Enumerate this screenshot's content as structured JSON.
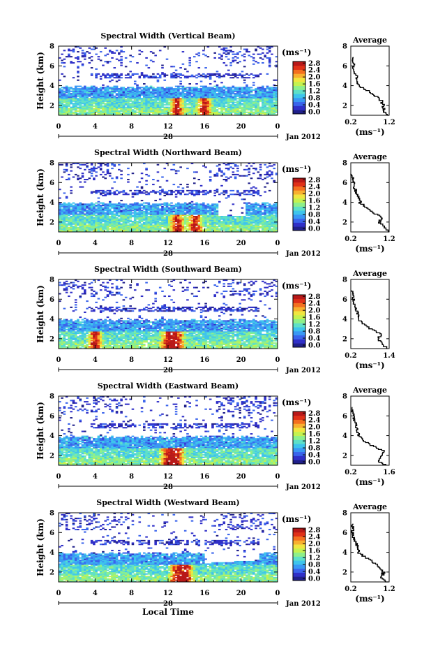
{
  "figure": {
    "date_label": "Jan 2012",
    "day_label": "28",
    "bottom_xlabel": "Local Time",
    "cb_unit": "(ms⁻¹)"
  },
  "colormap": [
    "#20208a",
    "#3030c8",
    "#3a64ec",
    "#3a98f4",
    "#3ec4ec",
    "#5ee0c8",
    "#8ef08a",
    "#c4f250",
    "#f0e640",
    "#f8b030",
    "#f47020",
    "#e03018",
    "#b81818"
  ],
  "chart_data": [
    {
      "type": "heatmap",
      "title": "Spectral Width (Vertical Beam)",
      "xlabel": "",
      "ylabel": "Height (km)",
      "x_ticks": [
        "0",
        "4",
        "8",
        "12",
        "16",
        "20",
        "0"
      ],
      "xlim": [
        0,
        24
      ],
      "ylim": [
        1,
        8
      ],
      "y_ticks": [
        "2",
        "4",
        "6",
        "8"
      ],
      "colorbar": {
        "unit": "(ms⁻¹)",
        "ticks": [
          "0.0",
          "0.4",
          "0.8",
          "1.2",
          "1.6",
          "2.0",
          "2.4",
          "2.8"
        ],
        "range": [
          0,
          2.8
        ]
      },
      "profile": {
        "title": "Average",
        "xlabel": "(ms⁻¹)",
        "x_ticks": [
          "0.2",
          "1.2"
        ],
        "xlim": [
          0.2,
          1.2
        ],
        "y_ticks": [
          "2",
          "4",
          "6",
          "8"
        ],
        "heights": [
          1.0,
          1.5,
          2.0,
          2.5,
          3.0,
          3.5,
          4.0,
          4.5,
          5.0,
          5.5,
          6.0,
          6.5,
          7.0
        ],
        "values": [
          1.2,
          1.05,
          1.05,
          1.0,
          0.85,
          0.65,
          0.4,
          0.38,
          0.35,
          0.3,
          0.28,
          0.25,
          0.23
        ]
      },
      "blob_hours": [
        13,
        16
      ]
    },
    {
      "type": "heatmap",
      "title": "Spectral Width (Northward Beam)",
      "xlabel": "",
      "ylabel": "Height (km)",
      "x_ticks": [
        "0",
        "4",
        "8",
        "12",
        "16",
        "20",
        "0"
      ],
      "xlim": [
        0,
        24
      ],
      "ylim": [
        1,
        8
      ],
      "y_ticks": [
        "2",
        "4",
        "6",
        "8"
      ],
      "colorbar": {
        "unit": "(ms⁻¹)",
        "ticks": [
          "0.0",
          "0.4",
          "0.8",
          "1.2",
          "1.6",
          "2.0",
          "2.4",
          "2.8"
        ],
        "range": [
          0,
          2.8
        ]
      },
      "profile": {
        "title": "Average",
        "xlabel": "(ms⁻¹)",
        "x_ticks": [
          "0.2",
          "1.2"
        ],
        "xlim": [
          0.2,
          1.2
        ],
        "y_ticks": [
          "2",
          "4",
          "6",
          "8"
        ],
        "heights": [
          1.0,
          1.5,
          2.0,
          2.5,
          3.0,
          3.5,
          4.0,
          4.5,
          5.0,
          5.5,
          6.0,
          6.5,
          7.0
        ],
        "values": [
          1.2,
          1.1,
          0.95,
          1.0,
          0.8,
          0.6,
          0.45,
          0.4,
          0.35,
          0.3,
          0.27,
          0.24,
          0.22
        ]
      },
      "blob_hours": [
        13,
        15
      ]
    },
    {
      "type": "heatmap",
      "title": "Spectral Width (Southward Beam)",
      "xlabel": "",
      "ylabel": "Height (km)",
      "x_ticks": [
        "0",
        "4",
        "8",
        "12",
        "16",
        "20",
        "0"
      ],
      "xlim": [
        0,
        24
      ],
      "ylim": [
        1,
        8
      ],
      "y_ticks": [
        "2",
        "4",
        "6",
        "8"
      ],
      "colorbar": {
        "unit": "(ms⁻¹)",
        "ticks": [
          "0.0",
          "0.4",
          "0.8",
          "1.2",
          "1.6",
          "2.0",
          "2.4",
          "2.8"
        ],
        "range": [
          0,
          2.8
        ]
      },
      "profile": {
        "title": "Average",
        "xlabel": "(ms⁻¹)",
        "x_ticks": [
          "0.2",
          "1.4"
        ],
        "xlim": [
          0.2,
          1.4
        ],
        "y_ticks": [
          "2",
          "4",
          "6",
          "8"
        ],
        "heights": [
          1.0,
          1.5,
          2.0,
          2.5,
          3.0,
          3.5,
          4.0,
          4.5,
          5.0,
          5.5,
          6.0,
          6.5,
          7.0
        ],
        "values": [
          1.35,
          1.2,
          1.05,
          1.15,
          0.85,
          0.6,
          0.45,
          0.42,
          0.38,
          0.32,
          0.3,
          0.26,
          0.24
        ]
      },
      "blob_hours": [
        4,
        12,
        13
      ]
    },
    {
      "type": "heatmap",
      "title": "Spectral Width (Eastward Beam)",
      "xlabel": "",
      "ylabel": "Height (km)",
      "x_ticks": [
        "0",
        "4",
        "8",
        "12",
        "16",
        "20",
        "0"
      ],
      "xlim": [
        0,
        24
      ],
      "ylim": [
        1,
        8
      ],
      "y_ticks": [
        "2",
        "4",
        "6",
        "8"
      ],
      "colorbar": {
        "unit": "(ms⁻¹)",
        "ticks": [
          "0.0",
          "0.4",
          "0.8",
          "1.2",
          "1.6",
          "2.0",
          "2.4",
          "2.8"
        ],
        "range": [
          0,
          2.8
        ]
      },
      "profile": {
        "title": "Average",
        "xlabel": "(ms⁻¹)",
        "x_ticks": [
          "0.2",
          "1.6"
        ],
        "xlim": [
          0.2,
          1.6
        ],
        "y_ticks": [
          "2",
          "4",
          "6",
          "8"
        ],
        "heights": [
          1.0,
          1.5,
          2.0,
          2.5,
          3.0,
          3.5,
          4.0,
          4.5,
          5.0,
          5.5,
          6.0,
          6.5,
          7.0
        ],
        "values": [
          1.5,
          1.2,
          1.3,
          1.4,
          1.0,
          0.7,
          0.5,
          0.45,
          0.4,
          0.35,
          0.3,
          0.26,
          0.24
        ]
      },
      "blob_hours": [
        12,
        13
      ]
    },
    {
      "type": "heatmap",
      "title": "Spectral Width (Westward Beam)",
      "xlabel": "Local Time",
      "ylabel": "Height (km)",
      "x_ticks": [
        "0",
        "4",
        "8",
        "12",
        "16",
        "20",
        "0"
      ],
      "xlim": [
        0,
        24
      ],
      "ylim": [
        1,
        8
      ],
      "y_ticks": [
        "2",
        "4",
        "6",
        "8"
      ],
      "colorbar": {
        "unit": "(ms⁻¹)",
        "ticks": [
          "0.0",
          "0.4",
          "0.8",
          "1.2",
          "1.6",
          "2.0",
          "2.4",
          "2.8"
        ],
        "range": [
          0,
          2.8
        ]
      },
      "profile": {
        "title": "Average",
        "xlabel": "(ms⁻¹)",
        "x_ticks": [
          "0.2",
          "1.2"
        ],
        "xlim": [
          0.2,
          1.2
        ],
        "y_ticks": [
          "2",
          "4",
          "6",
          "8"
        ],
        "heights": [
          1.0,
          1.5,
          2.0,
          2.5,
          3.0,
          3.5,
          4.0,
          4.5,
          5.0,
          5.5,
          6.0,
          6.5,
          7.0
        ],
        "values": [
          1.15,
          1.0,
          1.05,
          0.95,
          0.8,
          0.6,
          0.42,
          0.38,
          0.33,
          0.28,
          0.26,
          0.24,
          0.22
        ]
      },
      "blob_hours": [
        13,
        14
      ]
    }
  ]
}
